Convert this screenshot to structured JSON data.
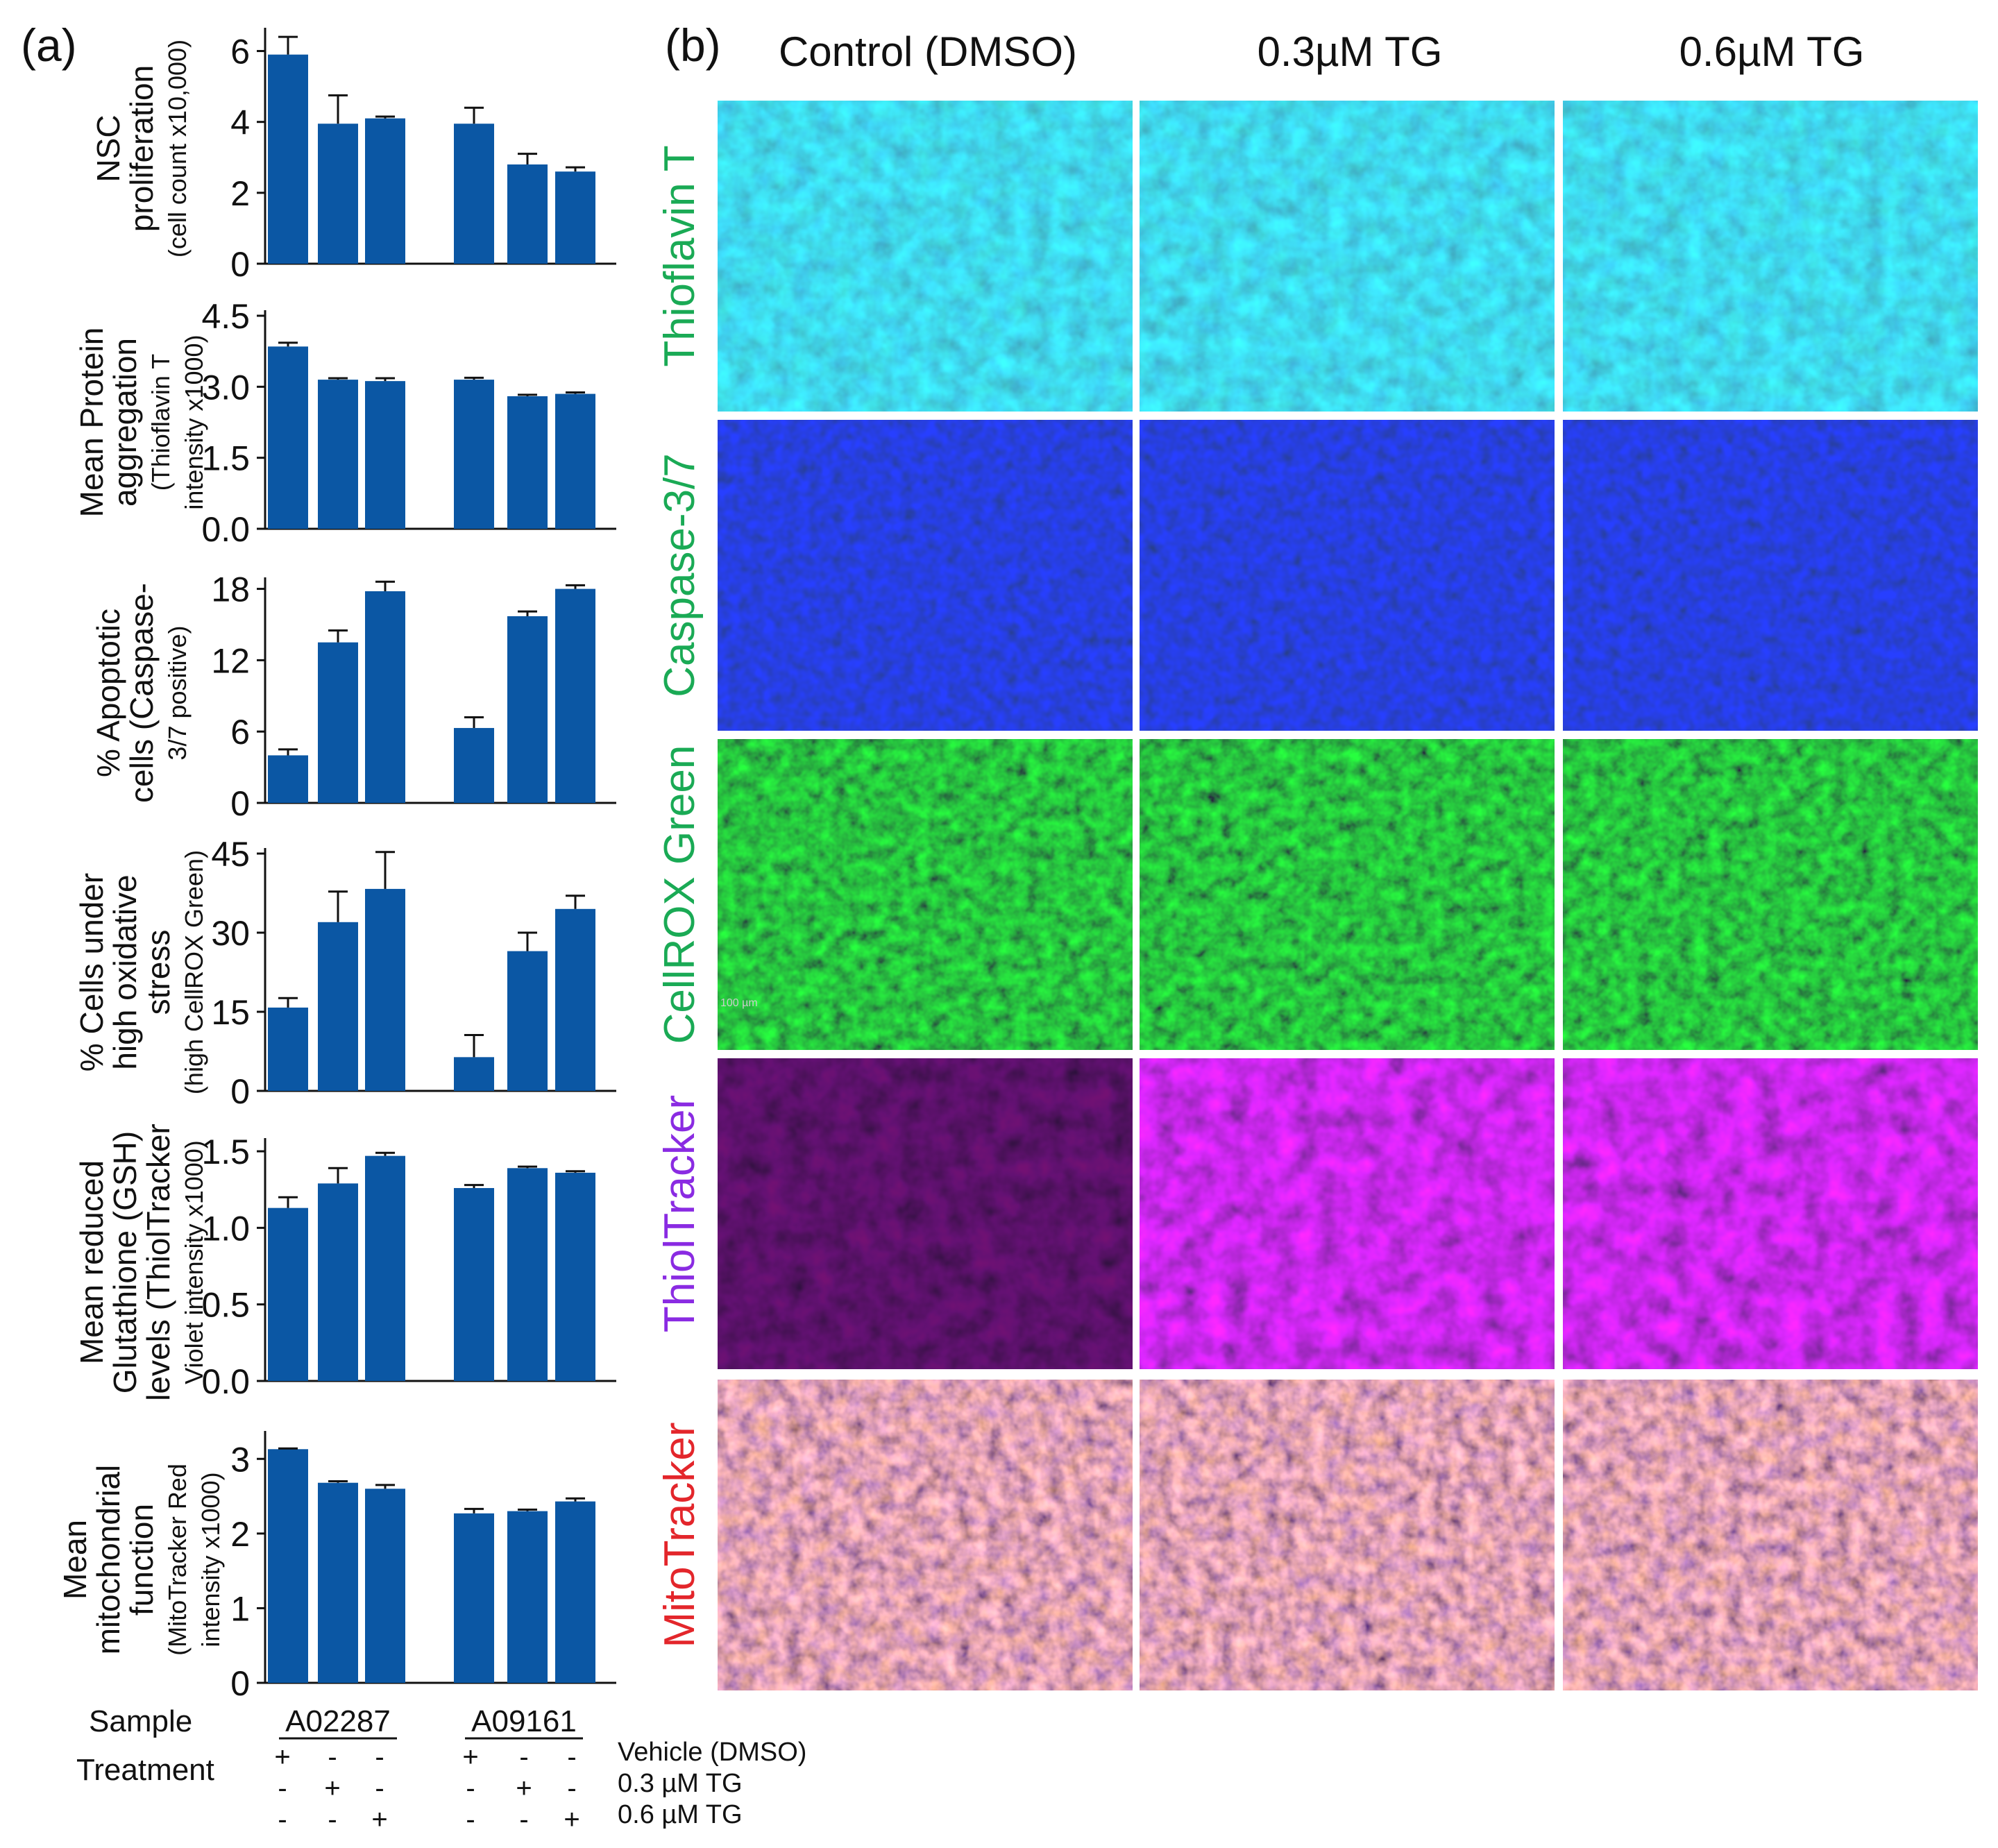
{
  "panel_labels": {
    "a": "(a)",
    "b": "(b)"
  },
  "colors": {
    "bar": "#0b57a4",
    "axis": "#111111",
    "green_label": "#1aaa55",
    "purple_label": "#8a2be2",
    "red_label": "#e3262b"
  },
  "chart_data": [
    {
      "type": "bar",
      "ylabel_lines": [
        "NSC",
        "proliferation",
        "(cell count x10,000)"
      ],
      "ylim": [
        0,
        6.5
      ],
      "yticks": [
        "0",
        "2",
        "4",
        "6"
      ],
      "ytick_values": [
        0,
        2,
        4,
        6
      ],
      "categories": [
        "A02287 Vehicle",
        "A02287 0.3 µM TG",
        "A02287 0.6 µM TG",
        "A09161 Vehicle",
        "A09161 0.3 µM TG",
        "A09161 0.6 µM TG"
      ],
      "values": [
        5.9,
        3.95,
        4.1,
        3.95,
        2.8,
        2.6
      ],
      "errors": [
        0.5,
        0.8,
        0.05,
        0.45,
        0.3,
        0.12
      ]
    },
    {
      "type": "bar",
      "ylabel_lines": [
        "Mean Protein",
        "aggregation",
        "(Thioflavin T",
        "intensity x1000)"
      ],
      "ylim": [
        0,
        4.5
      ],
      "yticks": [
        "0.0",
        "1.5",
        "3.0",
        "4.5"
      ],
      "ytick_values": [
        0,
        1.5,
        3.0,
        4.5
      ],
      "categories": [
        "A02287 Vehicle",
        "A02287 0.3 µM TG",
        "A02287 0.6 µM TG",
        "A09161 Vehicle",
        "A09161 0.3 µM TG",
        "A09161 0.6 µM TG"
      ],
      "values": [
        3.85,
        3.15,
        3.12,
        3.15,
        2.8,
        2.85
      ],
      "errors": [
        0.08,
        0.03,
        0.06,
        0.04,
        0.03,
        0.03
      ]
    },
    {
      "type": "bar",
      "ylabel_lines": [
        "% Apoptotic",
        "cells (Caspase-",
        "3/7 positive)"
      ],
      "ylim": [
        0,
        18.5
      ],
      "yticks": [
        "0",
        "6",
        "12",
        "18"
      ],
      "ytick_values": [
        0,
        6,
        12,
        18
      ],
      "categories": [
        "A02287 Vehicle",
        "A02287 0.3 µM TG",
        "A02287 0.6 µM TG",
        "A09161 Vehicle",
        "A09161 0.3 µM TG",
        "A09161 0.6 µM TG"
      ],
      "values": [
        4.0,
        13.5,
        17.8,
        6.3,
        15.7,
        18.0
      ],
      "errors": [
        0.5,
        1.0,
        0.8,
        0.9,
        0.4,
        0.3
      ]
    },
    {
      "type": "bar",
      "ylabel_lines": [
        "% Cells under",
        "high oxidative",
        "stress",
        "(high CellROX Green)"
      ],
      "ylim": [
        0,
        45
      ],
      "yticks": [
        "0",
        "15",
        "30",
        "45"
      ],
      "ytick_values": [
        0,
        15,
        30,
        45
      ],
      "categories": [
        "A02287 Vehicle",
        "A02287 0.3 µM TG",
        "A02287 0.6 µM TG",
        "A09161 Vehicle",
        "A09161 0.3 µM TG",
        "A09161 0.6 µM TG"
      ],
      "values": [
        15.8,
        32.0,
        38.3,
        6.4,
        26.5,
        34.5
      ],
      "errors": [
        1.8,
        5.8,
        7.0,
        4.2,
        3.5,
        2.5
      ]
    },
    {
      "type": "bar",
      "ylabel_lines": [
        "Mean reduced",
        "Glutathione (GSH)",
        "levels  (ThiolTracker",
        "Violet intensity x1000)"
      ],
      "ylim": [
        0,
        1.55
      ],
      "yticks": [
        "0.0",
        "0.5",
        "1.0",
        "1.5"
      ],
      "ytick_values": [
        0,
        0.5,
        1.0,
        1.5
      ],
      "categories": [
        "A02287 Vehicle",
        "A02287 0.3 µM TG",
        "A02287 0.6 µM TG",
        "A09161 Vehicle",
        "A09161 0.3 µM TG",
        "A09161 0.6 µM TG"
      ],
      "values": [
        1.13,
        1.29,
        1.47,
        1.26,
        1.39,
        1.36
      ],
      "errors": [
        0.07,
        0.1,
        0.02,
        0.02,
        0.01,
        0.01
      ]
    },
    {
      "type": "bar",
      "ylabel_lines": [
        "Mean",
        "mitochondrial",
        "function",
        "(MitoTracker Red",
        "intensity x1000)"
      ],
      "ylim": [
        0,
        3.3
      ],
      "yticks": [
        "0",
        "1",
        "2",
        "3"
      ],
      "ytick_values": [
        0,
        1,
        2,
        3
      ],
      "categories": [
        "A02287 Vehicle",
        "A02287 0.3 µM TG",
        "A02287 0.6 µM TG",
        "A09161 Vehicle",
        "A09161 0.3 µM TG",
        "A09161 0.6 µM TG"
      ],
      "values": [
        3.13,
        2.68,
        2.6,
        2.27,
        2.3,
        2.43
      ],
      "errors": [
        0.01,
        0.02,
        0.05,
        0.06,
        0.02,
        0.04
      ]
    }
  ],
  "treatment_table": {
    "sample_label": "Sample",
    "treatment_label": "Treatment",
    "samples": [
      "A02287",
      "A09161"
    ],
    "rows": [
      {
        "label": "Vehicle (DMSO)",
        "signs": [
          "+",
          "-",
          "-",
          "+",
          "-",
          "-"
        ]
      },
      {
        "label": "0.3 µM TG",
        "signs": [
          "-",
          "+",
          "-",
          "-",
          "+",
          "-"
        ]
      },
      {
        "label": "0.6 µM TG",
        "signs": [
          "-",
          "-",
          "+",
          "-",
          "-",
          "+"
        ]
      }
    ]
  },
  "image_grid": {
    "column_headers": [
      "Control (DMSO)",
      "0.3µM TG",
      "0.6µM TG"
    ],
    "row_labels": [
      {
        "text": "Thioflavin T",
        "color": "#1aaa55"
      },
      {
        "text": "Caspase-3/7",
        "color": "#1aaa55"
      },
      {
        "text": "CellROX Green",
        "color": "#1aaa55"
      },
      {
        "text": "ThiolTracker",
        "color": "#8a2be2"
      },
      {
        "text": "MitoTracker",
        "color": "#e3262b"
      }
    ],
    "scale_bar_text": "100 µm"
  }
}
